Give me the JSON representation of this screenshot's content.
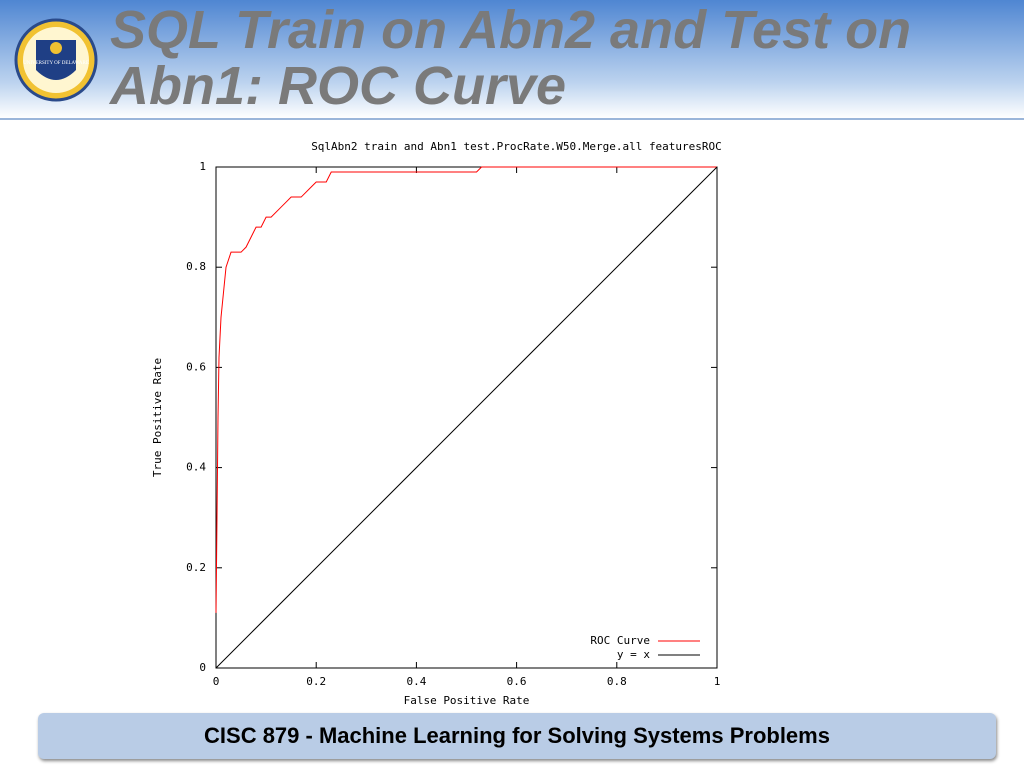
{
  "slide_title": "SQL Train on Abn2 and Test on Abn1: ROC Curve",
  "logo_text": "UNIVERSITY OF DELAWARE",
  "footer": "CISC 879 - Machine Learning for Solving Systems Problems",
  "chart_data": {
    "type": "line",
    "title": "SqlAbn2 train and Abn1 test.ProcRate.W50.Merge.all featuresROC",
    "x_label": "False Positive Rate",
    "y_label": "True Positive Rate",
    "xlim": [
      0,
      1
    ],
    "ylim": [
      0,
      1
    ],
    "xticks": [
      0,
      0.2,
      0.4,
      0.6,
      0.8,
      1
    ],
    "yticks": [
      0,
      0.2,
      0.4,
      0.6,
      0.8,
      1
    ],
    "legend": "lower right",
    "series": [
      {
        "name": "ROC Curve",
        "color": "#ff0000",
        "x": [
          0,
          0.002,
          0.004,
          0.006,
          0.01,
          0.015,
          0.02,
          0.03,
          0.05,
          0.06,
          0.07,
          0.08,
          0.09,
          0.1,
          0.11,
          0.13,
          0.14,
          0.15,
          0.17,
          0.19,
          0.2,
          0.22,
          0.23,
          0.52,
          0.53,
          1
        ],
        "values": [
          0.11,
          0.3,
          0.5,
          0.62,
          0.7,
          0.75,
          0.8,
          0.83,
          0.83,
          0.84,
          0.86,
          0.88,
          0.88,
          0.9,
          0.9,
          0.92,
          0.93,
          0.94,
          0.94,
          0.96,
          0.97,
          0.97,
          0.99,
          0.99,
          1,
          1
        ]
      },
      {
        "name": "y = x",
        "color": "#000000",
        "x": [
          0,
          1
        ],
        "values": [
          0,
          1
        ]
      }
    ]
  }
}
